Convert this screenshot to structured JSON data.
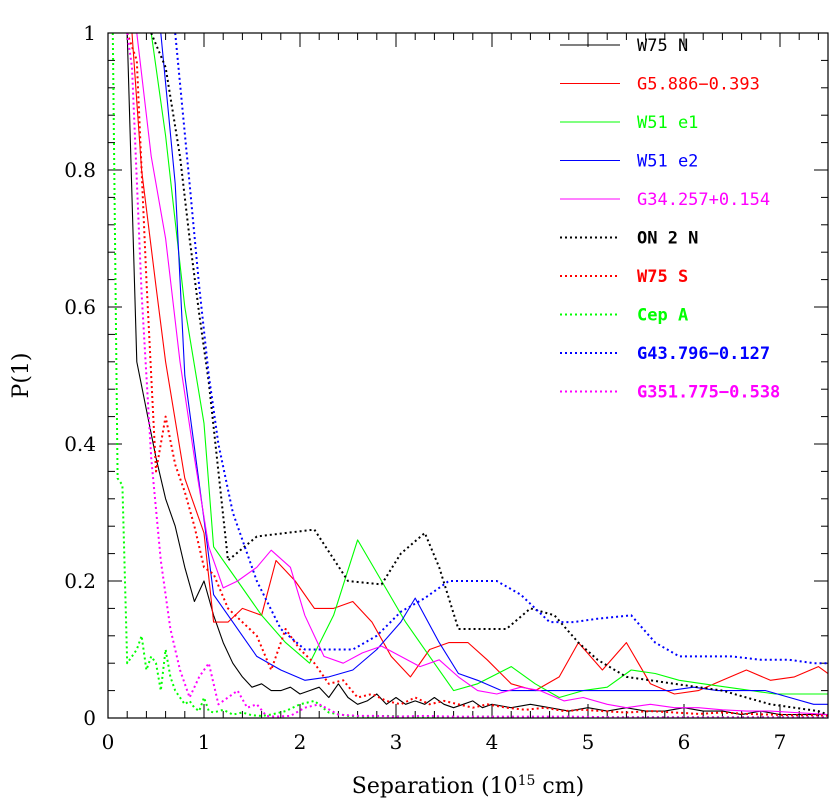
{
  "chart_data": {
    "type": "line",
    "title": "",
    "xlabel": "Separation (10",
    "xlabel_sup": "15",
    "xlabel_tail": " cm)",
    "ylabel": "P(1)",
    "xlim": [
      0,
      7.5
    ],
    "ylim": [
      0,
      1.0
    ],
    "xticks": [
      0,
      1,
      2,
      3,
      4,
      5,
      6,
      7
    ],
    "yticks": [
      0,
      0.2,
      0.4,
      0.6,
      0.8,
      1
    ],
    "grid": false,
    "legend_position": "top-right",
    "series": [
      {
        "name": "W75 N",
        "color": "#000000",
        "dash": "solid",
        "bold": false,
        "x": [
          0.1,
          0.2,
          0.3,
          0.4,
          0.5,
          0.6,
          0.7,
          0.8,
          0.9,
          1.0,
          1.1,
          1.2,
          1.3,
          1.4,
          1.5,
          1.6,
          1.7,
          1.8,
          1.9,
          2.0,
          2.1,
          2.2,
          2.3,
          2.4,
          2.5,
          2.6,
          2.7,
          2.8,
          2.9,
          3.0,
          3.1,
          3.2,
          3.3,
          3.4,
          3.5,
          3.6,
          3.7,
          3.8,
          3.9,
          4.0,
          4.2,
          4.4,
          4.6,
          4.8,
          5.0,
          5.2,
          5.4,
          5.6,
          5.8,
          6.0,
          6.2,
          6.4,
          6.6,
          6.8,
          7.0,
          7.2,
          7.5
        ],
        "y": [
          1.0,
          1.0,
          0.52,
          0.45,
          0.38,
          0.32,
          0.28,
          0.22,
          0.17,
          0.2,
          0.15,
          0.11,
          0.08,
          0.06,
          0.045,
          0.05,
          0.04,
          0.04,
          0.045,
          0.035,
          0.04,
          0.045,
          0.03,
          0.05,
          0.03,
          0.02,
          0.025,
          0.035,
          0.02,
          0.03,
          0.02,
          0.025,
          0.02,
          0.03,
          0.02,
          0.015,
          0.02,
          0.025,
          0.015,
          0.02,
          0.015,
          0.02,
          0.015,
          0.01,
          0.015,
          0.01,
          0.015,
          0.01,
          0.01,
          0.015,
          0.01,
          0.01,
          0.005,
          0.01,
          0.005,
          0.005,
          0.005
        ]
      },
      {
        "name": "G5.886−0.393",
        "color": "#ff0000",
        "dash": "solid",
        "bold": false,
        "x": [
          0.25,
          0.35,
          0.5,
          0.6,
          0.8,
          1.0,
          1.1,
          1.25,
          1.4,
          1.6,
          1.75,
          1.95,
          2.15,
          2.35,
          2.55,
          2.75,
          2.95,
          3.15,
          3.35,
          3.55,
          3.75,
          3.95,
          4.2,
          4.45,
          4.7,
          4.9,
          5.15,
          5.4,
          5.65,
          5.9,
          6.15,
          6.4,
          6.65,
          6.9,
          7.15,
          7.4,
          7.5
        ],
        "y": [
          1.0,
          0.8,
          0.63,
          0.52,
          0.35,
          0.27,
          0.14,
          0.14,
          0.16,
          0.15,
          0.23,
          0.2,
          0.16,
          0.16,
          0.17,
          0.14,
          0.09,
          0.06,
          0.1,
          0.11,
          0.11,
          0.085,
          0.05,
          0.04,
          0.06,
          0.11,
          0.07,
          0.11,
          0.05,
          0.035,
          0.04,
          0.055,
          0.07,
          0.055,
          0.06,
          0.075,
          0.065
        ]
      },
      {
        "name": "W51 e1",
        "color": "#00ff00",
        "dash": "solid",
        "bold": false,
        "x": [
          0.45,
          0.6,
          0.8,
          1.0,
          1.1,
          1.35,
          1.6,
          1.85,
          2.1,
          2.35,
          2.6,
          2.85,
          3.1,
          3.35,
          3.6,
          3.85,
          4.2,
          4.45,
          4.7,
          4.95,
          5.2,
          5.45,
          5.7,
          5.95,
          6.2,
          6.45,
          6.7,
          6.95,
          7.2,
          7.5
        ],
        "y": [
          1.0,
          0.85,
          0.6,
          0.43,
          0.25,
          0.2,
          0.15,
          0.11,
          0.08,
          0.15,
          0.26,
          0.2,
          0.14,
          0.09,
          0.04,
          0.05,
          0.075,
          0.05,
          0.03,
          0.04,
          0.045,
          0.07,
          0.065,
          0.055,
          0.05,
          0.045,
          0.04,
          0.035,
          0.035,
          0.035
        ]
      },
      {
        "name": "W51 e2",
        "color": "#0000ff",
        "dash": "solid",
        "bold": false,
        "x": [
          0.55,
          0.7,
          0.8,
          1.0,
          1.1,
          1.3,
          1.55,
          1.8,
          2.05,
          2.3,
          2.55,
          2.8,
          3.05,
          3.2,
          3.45,
          3.65,
          3.85,
          4.1,
          4.35,
          4.6,
          4.85,
          5.1,
          5.35,
          5.6,
          5.85,
          6.1,
          6.35,
          6.6,
          6.85,
          7.1,
          7.35,
          7.5
        ],
        "y": [
          1.0,
          0.78,
          0.5,
          0.29,
          0.18,
          0.14,
          0.09,
          0.07,
          0.055,
          0.06,
          0.07,
          0.1,
          0.14,
          0.175,
          0.11,
          0.065,
          0.055,
          0.04,
          0.04,
          0.04,
          0.04,
          0.04,
          0.04,
          0.04,
          0.04,
          0.045,
          0.04,
          0.04,
          0.04,
          0.03,
          0.02,
          0.02
        ]
      },
      {
        "name": "G34.257+0.154",
        "color": "#ff00ff",
        "dash": "solid",
        "bold": false,
        "x": [
          0.3,
          0.45,
          0.6,
          0.75,
          0.9,
          1.05,
          1.2,
          1.35,
          1.55,
          1.7,
          1.9,
          2.05,
          2.25,
          2.45,
          2.65,
          2.85,
          3.05,
          3.25,
          3.45,
          3.65,
          3.85,
          4.05,
          4.3,
          4.5,
          4.75,
          4.95,
          5.2,
          5.4,
          5.65,
          5.9,
          6.15,
          6.4,
          6.65,
          6.9,
          7.15,
          7.4,
          7.5
        ],
        "y": [
          1.0,
          0.82,
          0.7,
          0.52,
          0.38,
          0.25,
          0.19,
          0.2,
          0.22,
          0.245,
          0.22,
          0.15,
          0.09,
          0.08,
          0.095,
          0.105,
          0.09,
          0.075,
          0.085,
          0.06,
          0.04,
          0.035,
          0.045,
          0.04,
          0.025,
          0.03,
          0.02,
          0.015,
          0.02,
          0.015,
          0.015,
          0.012,
          0.01,
          0.01,
          0.008,
          0.006,
          0.005
        ]
      },
      {
        "name": "ON 2 N",
        "color": "#000000",
        "dash": "dotted",
        "bold": true,
        "x": [
          0.45,
          0.6,
          0.75,
          0.85,
          0.95,
          1.05,
          1.25,
          1.55,
          1.85,
          2.15,
          2.5,
          2.85,
          3.05,
          3.3,
          3.45,
          3.65,
          3.85,
          4.15,
          4.4,
          4.65,
          4.9,
          5.1,
          5.4,
          5.65,
          5.9,
          6.15,
          6.4,
          6.65,
          6.9,
          7.15,
          7.4,
          7.5
        ],
        "y": [
          1.0,
          0.95,
          0.82,
          0.7,
          0.59,
          0.49,
          0.23,
          0.265,
          0.27,
          0.275,
          0.2,
          0.195,
          0.24,
          0.27,
          0.22,
          0.13,
          0.13,
          0.13,
          0.16,
          0.15,
          0.11,
          0.085,
          0.06,
          0.055,
          0.05,
          0.045,
          0.04,
          0.03,
          0.02,
          0.015,
          0.01,
          0.005
        ]
      },
      {
        "name": "W75 S",
        "color": "#ff0000",
        "dash": "dotted",
        "bold": true,
        "x": [
          0.2,
          0.3,
          0.4,
          0.5,
          0.6,
          0.7,
          0.8,
          0.9,
          1.0,
          1.1,
          1.25,
          1.4,
          1.55,
          1.7,
          1.85,
          2.0,
          2.15,
          2.3,
          2.45,
          2.6,
          2.75,
          2.9,
          3.05,
          3.2,
          3.35,
          3.5,
          3.65,
          3.8,
          3.95,
          4.15,
          4.35,
          4.55,
          4.75,
          4.95,
          5.15,
          5.4,
          5.65,
          5.9,
          6.15,
          6.4,
          6.65,
          6.9,
          7.15,
          7.4,
          7.5
        ],
        "y": [
          1.0,
          0.96,
          0.64,
          0.36,
          0.44,
          0.37,
          0.33,
          0.28,
          0.22,
          0.21,
          0.16,
          0.14,
          0.12,
          0.07,
          0.13,
          0.1,
          0.08,
          0.05,
          0.055,
          0.03,
          0.035,
          0.025,
          0.02,
          0.03,
          0.02,
          0.025,
          0.02,
          0.015,
          0.02,
          0.015,
          0.012,
          0.015,
          0.01,
          0.012,
          0.01,
          0.008,
          0.01,
          0.008,
          0.006,
          0.008,
          0.006,
          0.005,
          0.004,
          0.004,
          0.003
        ]
      },
      {
        "name": "Cep A",
        "color": "#00ff00",
        "dash": "dotted",
        "bold": true,
        "x": [
          0.05,
          0.1,
          0.15,
          0.2,
          0.25,
          0.3,
          0.35,
          0.4,
          0.45,
          0.5,
          0.55,
          0.6,
          0.65,
          0.7,
          0.75,
          0.8,
          0.85,
          0.9,
          0.95,
          1.0,
          1.05,
          1.1,
          1.2,
          1.3,
          1.4,
          1.5,
          1.6,
          1.7,
          1.85,
          2.0,
          2.15,
          2.3,
          2.5,
          2.7,
          2.9,
          3.1,
          3.3,
          3.6,
          3.9,
          4.2,
          4.6,
          5.0,
          5.5,
          6.0,
          6.5,
          7.0,
          7.5
        ],
        "y": [
          1.0,
          0.35,
          0.34,
          0.08,
          0.09,
          0.1,
          0.12,
          0.07,
          0.09,
          0.08,
          0.04,
          0.1,
          0.06,
          0.04,
          0.03,
          0.02,
          0.025,
          0.015,
          0.01,
          0.03,
          0.01,
          0.008,
          0.012,
          0.005,
          0.008,
          0.004,
          0.003,
          0.005,
          0.01,
          0.02,
          0.025,
          0.008,
          0.003,
          0.002,
          0.003,
          0.002,
          0.002,
          0.001,
          0.002,
          0.001,
          0.001,
          0.001,
          0.001,
          0.001,
          0.001,
          0.001,
          0.001
        ]
      },
      {
        "name": "G43.796−0.127",
        "color": "#0000ff",
        "dash": "dotted",
        "bold": true,
        "x": [
          0.7,
          0.85,
          0.95,
          1.05,
          1.15,
          1.3,
          1.55,
          1.8,
          2.05,
          2.3,
          2.55,
          2.8,
          3.05,
          3.3,
          3.55,
          3.75,
          4.05,
          4.3,
          4.6,
          4.85,
          5.1,
          5.45,
          5.7,
          5.95,
          6.2,
          6.5,
          6.8,
          7.1,
          7.35,
          7.5
        ],
        "y": [
          1.0,
          0.78,
          0.63,
          0.5,
          0.4,
          0.3,
          0.2,
          0.13,
          0.1,
          0.1,
          0.1,
          0.12,
          0.155,
          0.175,
          0.2,
          0.2,
          0.2,
          0.18,
          0.14,
          0.14,
          0.145,
          0.15,
          0.11,
          0.09,
          0.09,
          0.09,
          0.085,
          0.085,
          0.08,
          0.08
        ]
      },
      {
        "name": "G351.775−0.538",
        "color": "#ff00ff",
        "dash": "dotted",
        "bold": true,
        "x": [
          0.2,
          0.25,
          0.35,
          0.45,
          0.55,
          0.65,
          0.75,
          0.85,
          0.95,
          1.05,
          1.15,
          1.25,
          1.35,
          1.45,
          1.55,
          1.65,
          1.75,
          1.9,
          2.05,
          2.2,
          2.4,
          2.6,
          2.8,
          3.0,
          3.3,
          3.6,
          3.9,
          4.3,
          4.8,
          5.3,
          5.8,
          6.3,
          6.8,
          7.3,
          7.5
        ],
        "y": [
          1.0,
          0.95,
          0.62,
          0.38,
          0.23,
          0.13,
          0.07,
          0.03,
          0.06,
          0.08,
          0.02,
          0.03,
          0.04,
          0.015,
          0.02,
          0.003,
          0.002,
          0.003,
          0.015,
          0.02,
          0.005,
          0.003,
          0.003,
          0.002,
          0.003,
          0.002,
          0.002,
          0.002,
          0.002,
          0.001,
          0.001,
          0.001,
          0.001,
          0.001,
          0.001
        ]
      }
    ]
  }
}
